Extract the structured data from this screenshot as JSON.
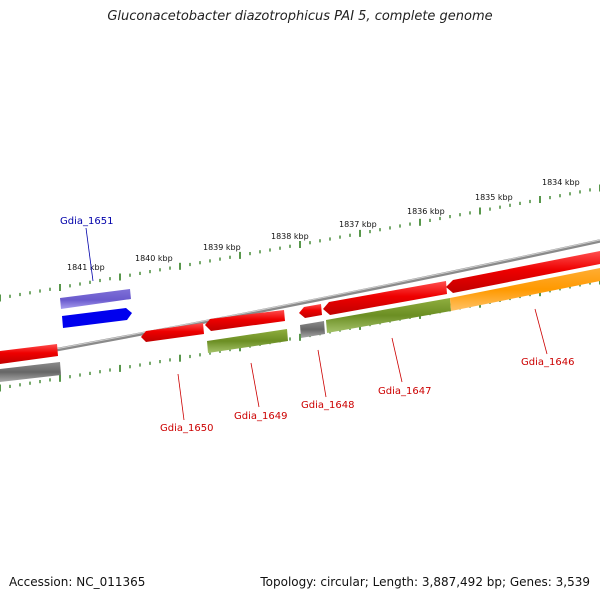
{
  "title": "Gluconacetobacter diazotrophicus PAI 5, complete genome",
  "footer": {
    "accession": "Accession: NC_011365",
    "summary": "Topology: circular; Length: 3,887,492 bp; Genes: 3,539"
  },
  "colors": {
    "backbone": "#8a8a8a",
    "tick": "#2e7d1e",
    "gene_forward": "#ee0000",
    "gene_cds": "#6b8e23",
    "gene_grey": "#707070",
    "gene_orange": "#ff9900",
    "gene_blue": "#0000ee",
    "gene_violet": "#6a5acd",
    "label_red": "#cc0000",
    "label_blue": "#0000aa"
  },
  "kbp_labels": [
    "1834 kbp",
    "1835 kbp",
    "1836 kbp",
    "1837 kbp",
    "1838 kbp",
    "1839 kbp",
    "1840 kbp",
    "1841 kbp"
  ],
  "genes": [
    {
      "name": "Gdia_1646",
      "color": "label_red"
    },
    {
      "name": "Gdia_1647",
      "color": "label_red"
    },
    {
      "name": "Gdia_1648",
      "color": "label_red"
    },
    {
      "name": "Gdia_1649",
      "color": "label_red"
    },
    {
      "name": "Gdia_1650",
      "color": "label_red"
    },
    {
      "name": "Gdia_1651",
      "color": "label_blue"
    }
  ]
}
